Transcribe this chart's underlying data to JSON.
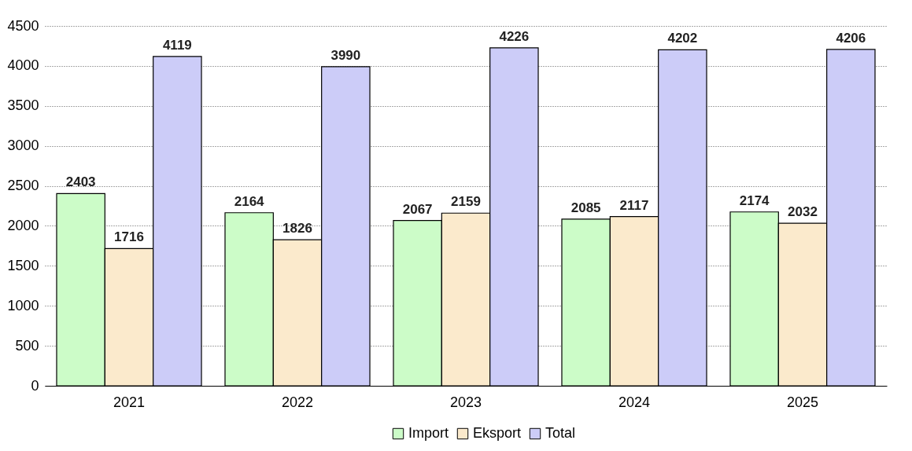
{
  "chart_data": {
    "type": "bar",
    "categories": [
      "2021",
      "2022",
      "2023",
      "2024",
      "2025"
    ],
    "series": [
      {
        "name": "Import",
        "color": "#ccfcc8",
        "values": [
          2403,
          2164,
          2067,
          2085,
          2174
        ]
      },
      {
        "name": "Eksport",
        "color": "#fbeacc",
        "values": [
          1716,
          1826,
          2159,
          2117,
          2032
        ]
      },
      {
        "name": "Total",
        "color": "#ccccf8",
        "values": [
          4119,
          3990,
          4226,
          4202,
          4206
        ]
      }
    ],
    "ylim": [
      0,
      4500
    ],
    "yticks": [
      0,
      500,
      1000,
      1500,
      2000,
      2500,
      3000,
      3500,
      4000,
      4500
    ],
    "grid": "y",
    "legend": "bottom",
    "data_labels": true
  }
}
